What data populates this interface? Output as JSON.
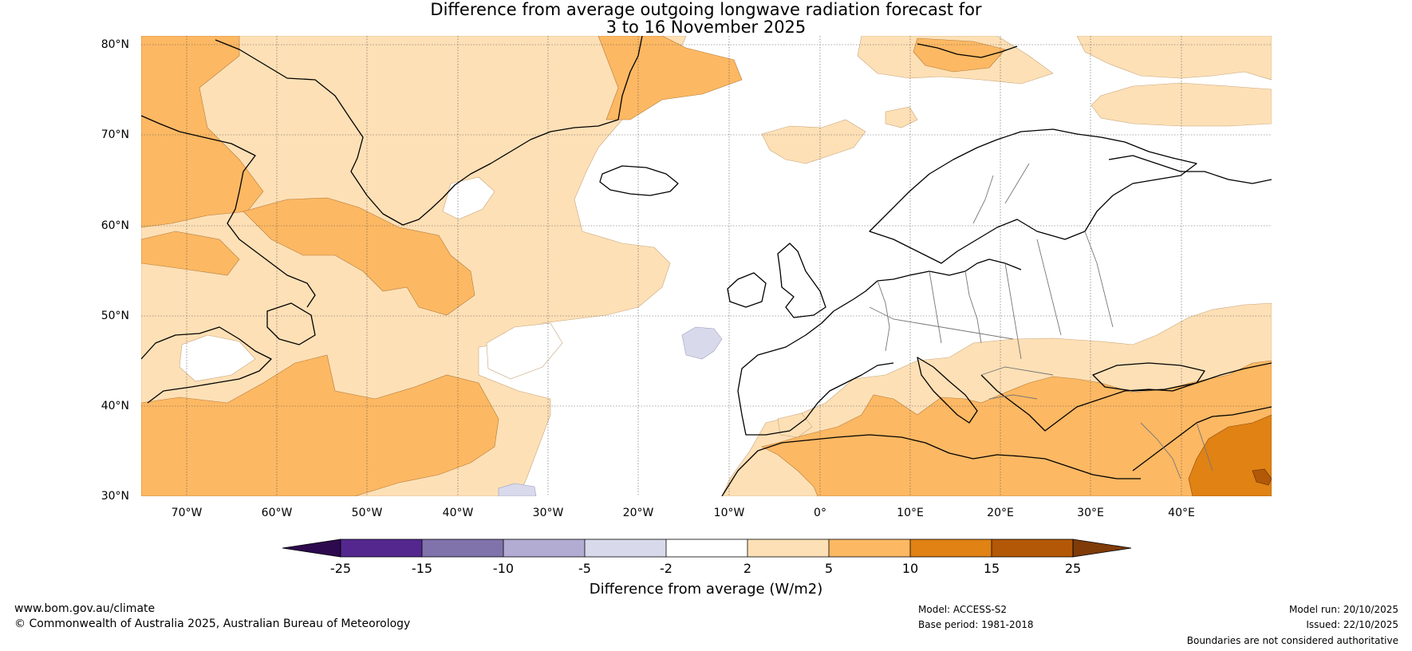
{
  "title": {
    "line1": "Difference from average outgoing longwave radiation forecast for",
    "line2": "3 to 16 November 2025"
  },
  "map": {
    "lat_labels": [
      "80°N",
      "70°N",
      "60°N",
      "50°N",
      "40°N",
      "30°N"
    ],
    "lon_labels": [
      "70°W",
      "60°W",
      "50°W",
      "40°W",
      "30°W",
      "20°W",
      "10°W",
      "0°",
      "10°E",
      "20°E",
      "30°E",
      "40°E"
    ],
    "lon_range": [
      -75,
      50
    ],
    "lat_range": [
      30,
      81
    ]
  },
  "colorbar": {
    "title": "Difference from average (W/m2)",
    "tick_labels": [
      "-25",
      "-15",
      "-10",
      "-5",
      "-2",
      "2",
      "5",
      "10",
      "15",
      "25"
    ],
    "colors": {
      "lt_-25": "#2d0a4e",
      "-25_-15": "#54278f",
      "-15_-10": "#8073ac",
      "-10_-5": "#b2abd2",
      "-5_-2": "#d8daeb",
      "-2_2": "#ffffff",
      "2_5": "#fee0b6",
      "5_10": "#fdb863",
      "10_15": "#e08214",
      "15_25": "#b35806",
      "gt_25": "#7f3b08"
    }
  },
  "footer": {
    "website": "www.bom.gov.au/climate",
    "copyright": "© Commonwealth of Australia 2025, Australian Bureau of Meteorology",
    "model": "Model: ACCESS-S2",
    "base_period": "Base period: 1981-2018",
    "model_run": "Model run: 20/10/2025",
    "issued": "Issued: 22/10/2025",
    "disclaimer": "Boundaries are not considered authoritative"
  }
}
